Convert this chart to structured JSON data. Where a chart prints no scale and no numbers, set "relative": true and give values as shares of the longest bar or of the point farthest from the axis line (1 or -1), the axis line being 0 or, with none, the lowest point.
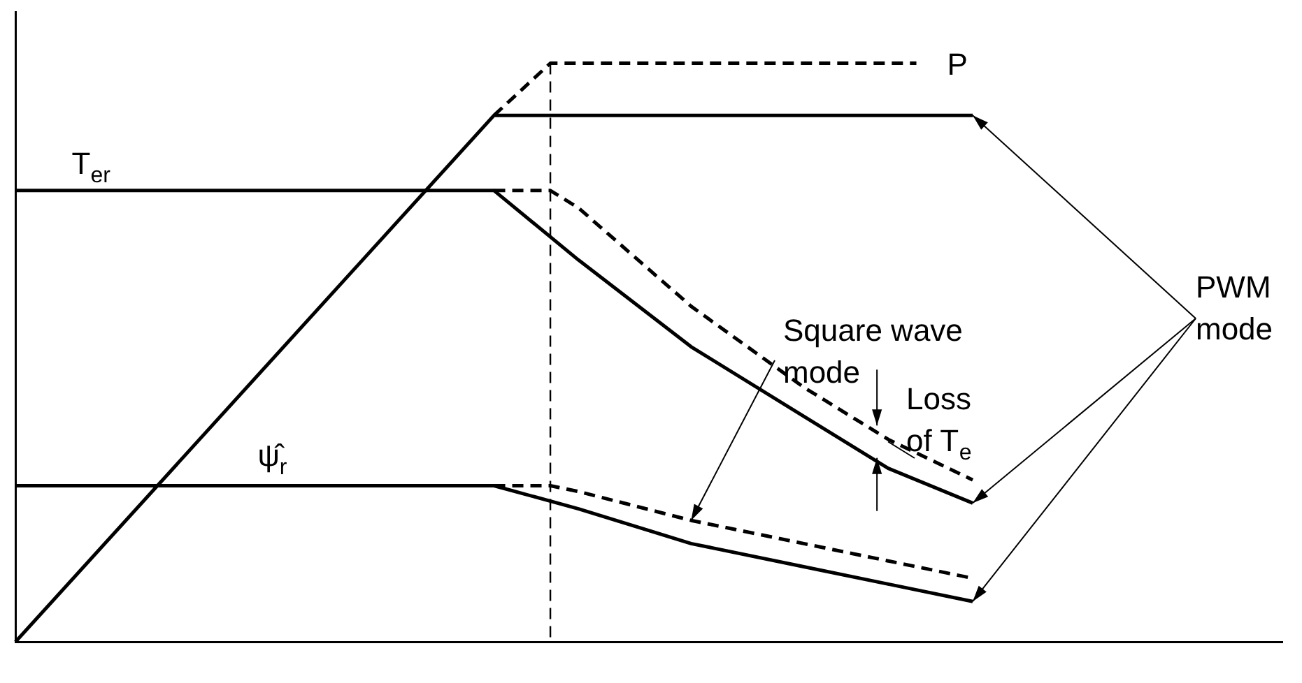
{
  "chart_data": {
    "type": "line",
    "relative": true,
    "marker": "none",
    "grid": false,
    "legend": false,
    "categories": [
      null,
      null,
      null,
      null,
      null,
      null,
      null,
      null,
      null,
      null,
      null,
      null,
      null,
      null,
      null,
      null,
      null,
      null,
      null,
      null,
      null,
      null,
      null,
      null,
      null,
      null,
      null,
      null,
      null,
      null,
      null,
      null,
      null,
      null,
      null,
      null,
      null,
      null,
      null,
      null,
      null,
      null,
      null,
      null,
      null,
      null
    ],
    "series": [
      {
        "color": "#000000",
        "line_style": "solid",
        "values": [
          0,
          null,
          null,
          null,
          null,
          null,
          null,
          null,
          null,
          null,
          null,
          null,
          null,
          null,
          null,
          null,
          null,
          0.91,
          null,
          null,
          null,
          null,
          null,
          null,
          null,
          null,
          null,
          null,
          null,
          null,
          null,
          null,
          null,
          null,
          0.91,
          null,
          null,
          null,
          null,
          null,
          null,
          null,
          null,
          null,
          null,
          null
        ]
      },
      {
        "name": "P",
        "color": "#000000",
        "line_style": "dashed",
        "values": [
          null,
          null,
          null,
          null,
          null,
          null,
          null,
          null,
          null,
          null,
          null,
          null,
          null,
          null,
          null,
          null,
          null,
          0.91,
          null,
          1,
          null,
          null,
          null,
          null,
          null,
          null,
          null,
          null,
          null,
          null,
          null,
          null,
          1,
          null,
          null,
          null,
          null,
          null,
          null,
          null,
          null,
          null,
          null,
          null,
          null,
          null
        ]
      },
      {
        "name": "T$_{er}$",
        "color": "#000000",
        "line_style": "solid",
        "values": [
          0.78,
          null,
          null,
          null,
          null,
          null,
          null,
          null,
          null,
          null,
          null,
          null,
          null,
          null,
          null,
          null,
          null,
          0.78,
          null,
          null,
          0.66,
          null,
          null,
          null,
          0.51,
          null,
          null,
          null,
          0.39,
          null,
          null,
          0.3,
          null,
          null,
          0.24,
          null,
          null,
          null,
          null,
          null,
          null,
          null,
          null,
          null,
          null,
          null
        ]
      },
      {
        "color": "#000000",
        "line_style": "dashed",
        "values": [
          null,
          null,
          null,
          null,
          null,
          null,
          null,
          null,
          null,
          null,
          null,
          null,
          null,
          null,
          null,
          null,
          null,
          0.78,
          null,
          0.78,
          0.75,
          null,
          null,
          null,
          0.58,
          null,
          null,
          null,
          0.44,
          null,
          null,
          0.35,
          null,
          null,
          0.28,
          null,
          null,
          null,
          null,
          null,
          null,
          null,
          null,
          null,
          null,
          null
        ]
      },
      {
        "name": "ψ̂$_{r}$",
        "color": "#000000",
        "line_style": "solid",
        "values": [
          0.27,
          null,
          null,
          null,
          null,
          null,
          null,
          null,
          null,
          null,
          null,
          null,
          null,
          null,
          null,
          null,
          null,
          0.27,
          null,
          null,
          0.23,
          null,
          null,
          null,
          0.17,
          null,
          null,
          null,
          0.13,
          null,
          null,
          0.1,
          null,
          null,
          0.07,
          null,
          null,
          null,
          null,
          null,
          null,
          null,
          null,
          null,
          null,
          null
        ]
      },
      {
        "color": "#000000",
        "line_style": "dashed",
        "values": [
          null,
          null,
          null,
          null,
          null,
          null,
          null,
          null,
          null,
          null,
          null,
          null,
          null,
          null,
          null,
          null,
          null,
          0.27,
          null,
          0.27,
          0.26,
          null,
          null,
          null,
          0.21,
          null,
          null,
          null,
          0.17,
          null,
          null,
          0.14,
          null,
          null,
          0.11,
          null,
          null,
          null,
          null,
          null,
          null,
          null,
          null,
          null,
          null,
          null
        ]
      }
    ],
    "annotations": [
      "Square wave mode",
      "PWM mode",
      "Loss of T$_{e}$"
    ]
  }
}
